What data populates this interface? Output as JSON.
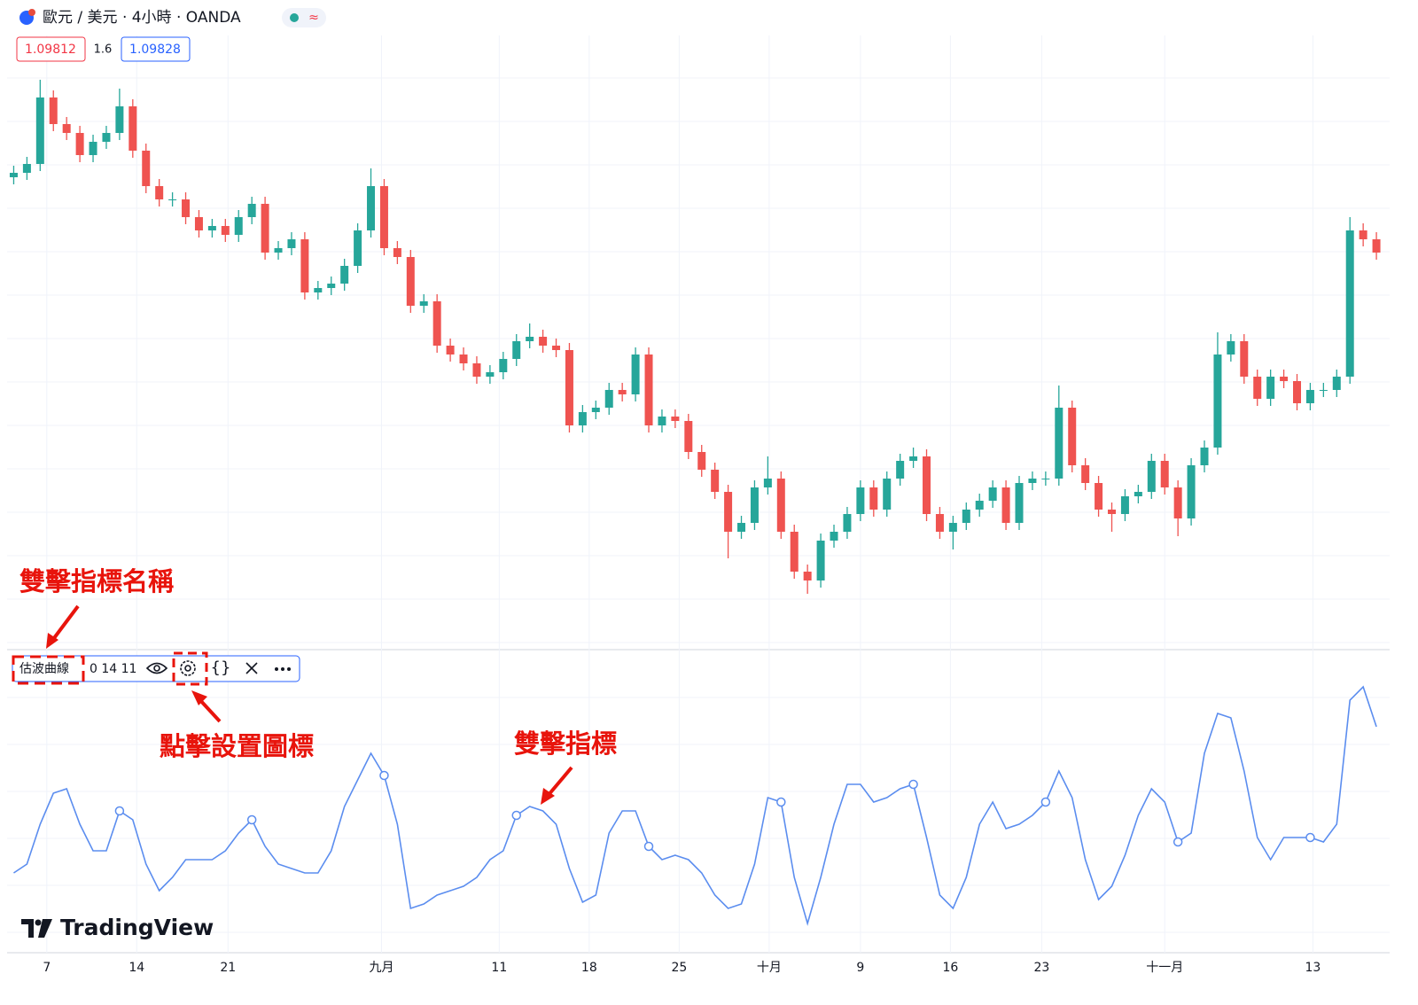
{
  "header": {
    "symbol": "歐元 / 美元 · 4小時 · OANDA",
    "badge": "≈",
    "bid": "1.09812",
    "spread": "1.6",
    "ask": "1.09828"
  },
  "indicator_legend": {
    "params": "0 14 11"
  },
  "annotations": {
    "name_hint": "雙擊指標名稱",
    "settings_hint": "點擊設置圖標",
    "indicator_hint": "雙擊指標"
  },
  "logo": "TradingView",
  "chart_data": [
    {
      "type": "candlestick",
      "up_color": "#26a69a",
      "down_color": "#ef5350",
      "xlim": [
        -0.5,
        104
      ],
      "ylim": [
        0,
        640
      ],
      "open": [
        500,
        505,
        515,
        590,
        560,
        550,
        525,
        540,
        550,
        580,
        530,
        490,
        475,
        475,
        455,
        440,
        445,
        435,
        455,
        470,
        415,
        420,
        430,
        370,
        375,
        380,
        400,
        440,
        490,
        420,
        410,
        355,
        360,
        310,
        300,
        290,
        275,
        280,
        295,
        315,
        320,
        310,
        305,
        220,
        235,
        240,
        260,
        255,
        300,
        220,
        230,
        225,
        190,
        170,
        145,
        100,
        110,
        150,
        160,
        100,
        55,
        45,
        90,
        100,
        120,
        150,
        125,
        160,
        180,
        185,
        120,
        100,
        110,
        125,
        135,
        150,
        110,
        155,
        160,
        160,
        240,
        175,
        155,
        125,
        120,
        140,
        145,
        180,
        150,
        115,
        175,
        195,
        300,
        315,
        275,
        250,
        275,
        270,
        245,
        260,
        260,
        275,
        440,
        430
      ],
      "high": [
        513,
        523,
        610,
        598,
        568,
        558,
        548,
        558,
        600,
        588,
        538,
        498,
        483,
        483,
        463,
        453,
        453,
        463,
        478,
        478,
        428,
        438,
        438,
        383,
        388,
        408,
        448,
        510,
        498,
        428,
        418,
        368,
        368,
        318,
        308,
        298,
        288,
        303,
        323,
        335,
        328,
        318,
        313,
        243,
        248,
        268,
        268,
        308,
        308,
        238,
        238,
        233,
        198,
        178,
        153,
        118,
        158,
        185,
        168,
        108,
        63,
        98,
        108,
        128,
        158,
        158,
        168,
        188,
        195,
        193,
        128,
        118,
        133,
        143,
        158,
        158,
        163,
        168,
        168,
        265,
        248,
        183,
        163,
        133,
        148,
        153,
        188,
        188,
        158,
        183,
        203,
        325,
        323,
        323,
        283,
        283,
        283,
        278,
        268,
        268,
        283,
        455,
        448,
        438
      ],
      "low": [
        492,
        497,
        507,
        552,
        542,
        517,
        517,
        532,
        542,
        522,
        482,
        467,
        467,
        447,
        432,
        432,
        427,
        427,
        447,
        407,
        407,
        412,
        362,
        362,
        367,
        372,
        392,
        432,
        412,
        402,
        347,
        347,
        302,
        292,
        282,
        267,
        267,
        272,
        287,
        307,
        302,
        297,
        212,
        212,
        227,
        232,
        247,
        247,
        212,
        212,
        217,
        182,
        162,
        137,
        70,
        92,
        102,
        142,
        92,
        47,
        30,
        37,
        82,
        92,
        112,
        117,
        117,
        152,
        172,
        112,
        92,
        80,
        102,
        117,
        127,
        102,
        102,
        147,
        152,
        152,
        167,
        147,
        117,
        100,
        112,
        132,
        137,
        142,
        95,
        107,
        167,
        187,
        292,
        267,
        242,
        242,
        262,
        237,
        237,
        252,
        252,
        267,
        422,
        407
      ],
      "close": [
        505,
        515,
        590,
        560,
        550,
        525,
        540,
        550,
        580,
        530,
        490,
        475,
        475,
        455,
        440,
        445,
        435,
        455,
        470,
        415,
        420,
        430,
        370,
        375,
        380,
        400,
        440,
        490,
        420,
        410,
        355,
        360,
        310,
        300,
        290,
        275,
        280,
        295,
        315,
        320,
        310,
        305,
        220,
        235,
        240,
        260,
        255,
        300,
        220,
        230,
        225,
        190,
        170,
        145,
        100,
        110,
        150,
        160,
        100,
        55,
        45,
        90,
        100,
        120,
        150,
        125,
        160,
        180,
        185,
        120,
        100,
        110,
        125,
        135,
        150,
        110,
        155,
        160,
        160,
        240,
        175,
        155,
        125,
        120,
        140,
        145,
        180,
        150,
        115,
        175,
        195,
        300,
        315,
        275,
        250,
        275,
        270,
        245,
        260,
        260,
        275,
        440,
        430,
        415
      ]
    },
    {
      "type": "line",
      "xlim": [
        -0.5,
        104
      ],
      "ylim": [
        0,
        300
      ],
      "xticks": [
        {
          "value": 2.5,
          "label": "7"
        },
        {
          "value": 9.3,
          "label": "14"
        },
        {
          "value": 16.2,
          "label": "21"
        },
        {
          "value": 27.8,
          "label": "九月"
        },
        {
          "value": 36.7,
          "label": "11"
        },
        {
          "value": 43.5,
          "label": "18"
        },
        {
          "value": 50.3,
          "label": "25"
        },
        {
          "value": 57.1,
          "label": "十月"
        },
        {
          "value": 64,
          "label": "9"
        },
        {
          "value": 70.8,
          "label": "16"
        },
        {
          "value": 77.7,
          "label": "23"
        },
        {
          "value": 87,
          "label": "十一月"
        },
        {
          "value": 98.2,
          "label": "13"
        }
      ],
      "markers": [
        8,
        18,
        28,
        38,
        48,
        58,
        68,
        78,
        88,
        98
      ],
      "series": [
        {
          "name": "估波曲線",
          "color": "#5b8def",
          "values": [
            65,
            75,
            120,
            155,
            160,
            120,
            90,
            90,
            135,
            125,
            75,
            45,
            60,
            80,
            80,
            80,
            90,
            110,
            125,
            95,
            75,
            70,
            65,
            65,
            90,
            140,
            170,
            200,
            175,
            120,
            25,
            30,
            40,
            45,
            50,
            60,
            80,
            90,
            130,
            140,
            135,
            120,
            70,
            32,
            40,
            110,
            135,
            135,
            95,
            80,
            85,
            80,
            65,
            40,
            25,
            30,
            75,
            150,
            145,
            60,
            8,
            60,
            120,
            165,
            165,
            145,
            150,
            160,
            165,
            105,
            40,
            25,
            60,
            120,
            145,
            115,
            120,
            130,
            145,
            180,
            150,
            80,
            35,
            50,
            85,
            130,
            160,
            145,
            100,
            110,
            200,
            245,
            240,
            180,
            105,
            80,
            105,
            105,
            105,
            100,
            120,
            260,
            275,
            230
          ]
        }
      ]
    }
  ]
}
